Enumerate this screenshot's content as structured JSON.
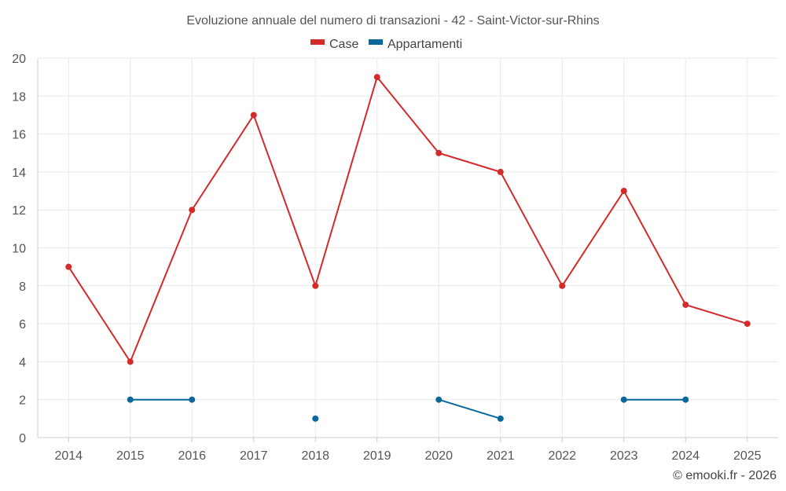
{
  "chart_data": {
    "type": "line",
    "title": "Evoluzione annuale del numero di transazioni - 42 - Saint-Victor-sur-Rhins",
    "xlabel": "",
    "ylabel": "",
    "categories": [
      "2014",
      "2015",
      "2016",
      "2017",
      "2018",
      "2019",
      "2020",
      "2021",
      "2022",
      "2023",
      "2024",
      "2025"
    ],
    "ylim": [
      0,
      20
    ],
    "yticks": [
      0,
      2,
      4,
      6,
      8,
      10,
      12,
      14,
      16,
      18,
      20
    ],
    "grid": true,
    "legend_position": "top-center",
    "series": [
      {
        "name": "Case",
        "color": "#d42a2a",
        "values": [
          9,
          4,
          12,
          17,
          8,
          19,
          15,
          14,
          8,
          13,
          7,
          6
        ]
      },
      {
        "name": "Appartamenti",
        "color": "#0a679c",
        "values": [
          null,
          2,
          2,
          null,
          1,
          null,
          2,
          1,
          null,
          2,
          2,
          null
        ]
      }
    ]
  },
  "credit": "© emooki.fr - 2026"
}
